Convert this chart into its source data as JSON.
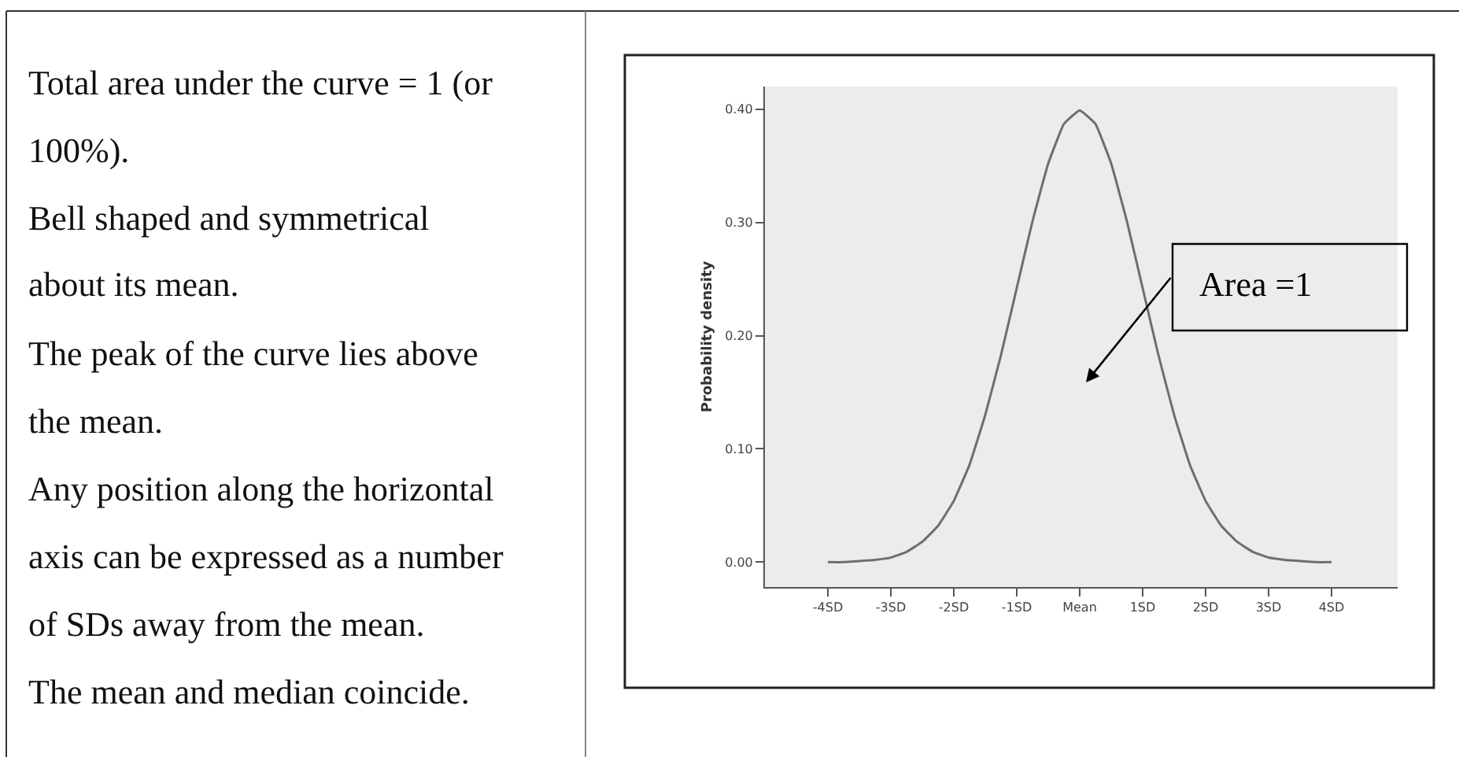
{
  "chart_data": {
    "type": "line",
    "ylabel": "Probability density",
    "x": [
      -4,
      -3.75,
      -3.5,
      -3.25,
      -3,
      -2.75,
      -2.5,
      -2.25,
      -2,
      -1.75,
      -1.5,
      -1.25,
      -1,
      -0.75,
      -0.5,
      -0.25,
      0,
      0.25,
      0.5,
      0.75,
      1,
      1.25,
      1.5,
      1.75,
      2,
      2.25,
      2.5,
      2.75,
      3,
      3.25,
      3.5,
      3.75,
      4
    ],
    "series": [
      {
        "color": "#6e6e6e",
        "values": [
          0.0,
          0.0,
          0.001,
          0.002,
          0.004,
          0.009,
          0.018,
          0.032,
          0.054,
          0.086,
          0.13,
          0.183,
          0.242,
          0.301,
          0.352,
          0.387,
          0.399,
          0.387,
          0.352,
          0.301,
          0.242,
          0.183,
          0.13,
          0.086,
          0.054,
          0.032,
          0.018,
          0.009,
          0.004,
          0.002,
          0.001,
          0.0,
          0.0
        ]
      }
    ],
    "xlim": [
      -5,
      5.05
    ],
    "xticks": [
      {
        "value": -4,
        "label": "-4SD"
      },
      {
        "value": -3,
        "label": "-3SD"
      },
      {
        "value": -2,
        "label": "-2SD"
      },
      {
        "value": -1,
        "label": "-1SD"
      },
      {
        "value": 0,
        "label": "Mean"
      },
      {
        "value": 1,
        "label": "1SD"
      },
      {
        "value": 2,
        "label": "2SD"
      },
      {
        "value": 3,
        "label": "3SD"
      },
      {
        "value": 4,
        "label": "4SD"
      }
    ],
    "ylim": [
      -0.022,
      0.42
    ],
    "yticks": [
      {
        "value": 0,
        "label": "0.00"
      },
      {
        "value": 0.1,
        "label": "0.10"
      },
      {
        "value": 0.2,
        "label": "0.20"
      },
      {
        "value": 0.3,
        "label": "0.30"
      },
      {
        "value": 0.4,
        "label": "0.40"
      }
    ],
    "marker": "none",
    "line_style": "solid",
    "annotations": [
      "Area =1",
      "Total area under the curve = 1 (or\n100%).",
      "Bell shaped and symmetrical\nabout its mean.",
      "The peak of the curve lies above\nthe mean.",
      "Any position along the horizontal\naxis can be expressed as a number\nof SDs away from the mean.",
      "The mean and median coincide."
    ]
  }
}
